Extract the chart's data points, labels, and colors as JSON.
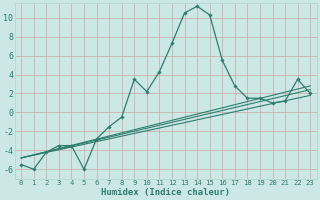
{
  "xlabel": "Humidex (Indice chaleur)",
  "background_color": "#cce8e4",
  "grid_color": "#b0d4cc",
  "line_color": "#2e7d6e",
  "xlim": [
    -0.5,
    23.5
  ],
  "ylim": [
    -7,
    11.5
  ],
  "yticks": [
    -6,
    -4,
    -2,
    0,
    2,
    4,
    6,
    8,
    10
  ],
  "xticks": [
    0,
    1,
    2,
    3,
    4,
    5,
    6,
    7,
    8,
    9,
    10,
    11,
    12,
    13,
    14,
    15,
    16,
    17,
    18,
    19,
    20,
    21,
    22,
    23
  ],
  "series_x": [
    0,
    1,
    2,
    3,
    4,
    5,
    6,
    7,
    8,
    9,
    10,
    11,
    12,
    13,
    14,
    15,
    16,
    17,
    18,
    19,
    20,
    21,
    22,
    23
  ],
  "series_y": [
    -5.5,
    -6.0,
    -4.2,
    -3.5,
    -3.5,
    -6.0,
    -2.8,
    -1.5,
    -0.5,
    3.5,
    2.2,
    4.3,
    7.3,
    10.5,
    11.2,
    10.3,
    5.5,
    2.8,
    1.5,
    1.5,
    1.0,
    1.2,
    3.5,
    2.0
  ],
  "linear_series": [
    {
      "x": [
        0,
        23
      ],
      "y": [
        -4.8,
        1.8
      ]
    },
    {
      "x": [
        0,
        23
      ],
      "y": [
        -4.8,
        2.4
      ]
    },
    {
      "x": [
        0,
        23
      ],
      "y": [
        -4.8,
        2.8
      ]
    }
  ]
}
